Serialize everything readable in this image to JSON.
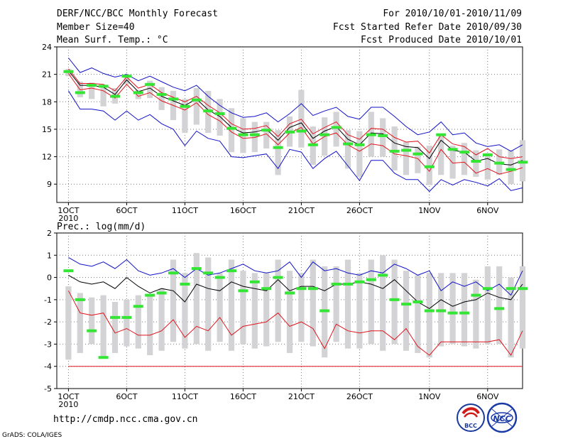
{
  "header": {
    "title": "DERF/NCC/BCC Monthly Forecast",
    "member_size": "Member Size=40",
    "variable": "Mean Surf. Temp.: °C",
    "period": "For 2010/10/01-2010/11/09",
    "started": "Fcst Started Refer Date 2010/09/30",
    "produced": "Fcst Produced Date 2010/10/01"
  },
  "footer": {
    "url": "http://cmdp.ncc.cma.gov.cn",
    "grads": "GrADS: COLA/IGES",
    "logo_left_text": "BCC",
    "logo_right_text": "NCC"
  },
  "colors": {
    "box": "#d3d3d5",
    "clim": "#33e633",
    "mean": "#000000",
    "spread": "#e0141e",
    "extreme": "#1010c8",
    "grid": "#7a7a7a"
  },
  "chart_data": [
    {
      "type": "line",
      "id": "temp",
      "ylabel": "Mean Surf. Temp.: °C",
      "ylim": [
        7,
        24
      ],
      "yticks": [
        9,
        12,
        15,
        18,
        21,
        24
      ],
      "xlim": [
        0,
        40
      ],
      "x_tick_days": [
        1,
        6,
        11,
        16,
        21,
        26,
        32,
        37
      ],
      "x_tick_labels": [
        "1OCT",
        "6OCT",
        "11OCT",
        "16OCT",
        "21OCT",
        "26OCT",
        "1NOV",
        "6NOV"
      ],
      "x_year_label": "2010",
      "days": [
        1,
        2,
        3,
        4,
        5,
        6,
        7,
        8,
        9,
        10,
        11,
        12,
        13,
        14,
        15,
        16,
        17,
        18,
        19,
        20,
        21,
        22,
        23,
        24,
        25,
        26,
        27,
        28,
        29,
        30,
        31,
        32,
        33,
        34,
        35,
        36,
        37,
        38,
        39,
        40
      ],
      "series": [
        {
          "name": "max",
          "color_key": "extreme",
          "values": [
            22.8,
            21.2,
            21.7,
            21.1,
            20.7,
            21.0,
            20.3,
            20.8,
            20.2,
            19.6,
            19.2,
            19.8,
            18.6,
            17.6,
            16.8,
            16.3,
            16.4,
            16.8,
            15.8,
            16.7,
            17.8,
            16.5,
            17.0,
            17.4,
            16.4,
            16.1,
            17.4,
            17.4,
            16.4,
            15.3,
            14.4,
            14.7,
            15.8,
            14.4,
            14.6,
            13.5,
            13.1,
            13.3,
            12.6,
            13.3
          ]
        },
        {
          "name": "mean_plus",
          "color_key": "spread",
          "values": [
            21.6,
            20.0,
            20.0,
            19.9,
            19.2,
            20.7,
            19.5,
            19.9,
            19.0,
            18.5,
            18.0,
            18.6,
            17.6,
            16.8,
            15.6,
            15.0,
            15.1,
            15.4,
            14.2,
            15.6,
            16.1,
            14.5,
            15.2,
            15.8,
            14.4,
            13.9,
            15.1,
            15.0,
            14.1,
            13.6,
            13.7,
            12.4,
            14.4,
            13.4,
            13.1,
            12.2,
            12.9,
            12.0,
            11.8,
            12.0
          ]
        },
        {
          "name": "mean",
          "color_key": "mean",
          "values": [
            21.4,
            19.8,
            19.8,
            19.6,
            18.8,
            20.4,
            19.1,
            19.5,
            18.6,
            18.1,
            17.6,
            18.3,
            17.1,
            16.4,
            15.2,
            14.6,
            14.7,
            15.0,
            13.8,
            15.2,
            15.7,
            14.0,
            14.8,
            15.3,
            13.9,
            13.3,
            14.6,
            14.5,
            13.5,
            13.1,
            13.0,
            11.8,
            13.8,
            12.7,
            12.5,
            11.5,
            11.8,
            11.2,
            11.1,
            11.6
          ]
        },
        {
          "name": "mean_minus",
          "color_key": "spread",
          "values": [
            21.1,
            19.3,
            19.5,
            19.2,
            18.4,
            19.9,
            18.6,
            19.0,
            18.1,
            17.6,
            17.1,
            17.9,
            16.6,
            15.9,
            14.7,
            14.0,
            14.1,
            14.5,
            13.3,
            14.6,
            15.2,
            13.4,
            14.2,
            14.6,
            13.3,
            12.6,
            13.4,
            13.2,
            12.3,
            12.1,
            11.8,
            10.4,
            12.8,
            11.3,
            11.4,
            10.2,
            10.7,
            10.1,
            10.4,
            10.8
          ]
        },
        {
          "name": "min",
          "color_key": "extreme",
          "values": [
            19.2,
            17.2,
            17.2,
            17.0,
            16.0,
            17.0,
            16.0,
            16.6,
            15.6,
            15.0,
            13.2,
            14.8,
            14.0,
            13.7,
            12.0,
            11.9,
            12.1,
            12.3,
            10.7,
            12.8,
            12.5,
            10.7,
            11.8,
            12.6,
            11.0,
            9.4,
            11.6,
            11.6,
            10.2,
            9.5,
            9.5,
            8.2,
            9.5,
            8.9,
            9.5,
            9.2,
            8.8,
            9.6,
            8.3,
            8.6
          ]
        }
      ],
      "boxes_low": [
        20.8,
        18.5,
        18.3,
        17.5,
        17.8,
        19.9,
        18.3,
        18.4,
        17.1,
        16.0,
        14.6,
        15.5,
        14.6,
        14.3,
        12.5,
        12.4,
        12.5,
        12.9,
        10.0,
        13.1,
        13.0,
        11.1,
        12.1,
        13.1,
        10.7,
        9.8,
        12.0,
        12.0,
        10.5,
        10.0,
        10.2,
        8.9,
        10.0,
        9.6,
        10.0,
        9.8,
        9.5,
        10.0,
        9.0,
        9.3
      ],
      "boxes_high": [
        21.6,
        20.2,
        20.1,
        19.8,
        19.5,
        21.0,
        19.3,
        20.3,
        19.6,
        19.2,
        18.3,
        19.5,
        19.2,
        18.3,
        17.3,
        16.2,
        15.8,
        15.8,
        14.9,
        16.4,
        19.3,
        15.3,
        16.3,
        16.9,
        14.9,
        14.8,
        16.9,
        16.2,
        15.3,
        13.6,
        13.1,
        13.2,
        14.3,
        13.2,
        13.5,
        12.7,
        12.4,
        12.8,
        12.7,
        13.8
      ],
      "climatology": [
        21.3,
        19.0,
        19.8,
        19.7,
        18.6,
        20.8,
        19.0,
        19.9,
        18.8,
        18.3,
        17.5,
        18.2,
        17.0,
        16.7,
        15.1,
        14.4,
        14.4,
        14.9,
        13.0,
        14.7,
        14.8,
        13.3,
        14.4,
        15.2,
        13.4,
        13.3,
        14.4,
        14.3,
        12.6,
        12.7,
        12.3,
        10.9,
        14.4,
        12.8,
        12.5,
        11.5,
        12.2,
        11.3,
        10.6,
        11.4
      ]
    },
    {
      "type": "line",
      "id": "prec",
      "ylabel": "Prec.: log(mm/d)",
      "ylim": [
        -5,
        2
      ],
      "yticks": [
        -5,
        -4,
        -3,
        -2,
        -1,
        0,
        1,
        2
      ],
      "xlim": [
        0,
        40
      ],
      "x_tick_days": [
        1,
        6,
        11,
        16,
        21,
        26,
        32,
        37
      ],
      "x_tick_labels": [
        "1OCT",
        "6OCT",
        "11OCT",
        "16OCT",
        "21OCT",
        "26OCT",
        "1NOV",
        "6NOV"
      ],
      "x_year_label": "2010",
      "days": [
        1,
        2,
        3,
        4,
        5,
        6,
        7,
        8,
        9,
        10,
        11,
        12,
        13,
        14,
        15,
        16,
        17,
        18,
        19,
        20,
        21,
        22,
        23,
        24,
        25,
        26,
        27,
        28,
        29,
        30,
        31,
        32,
        33,
        34,
        35,
        36,
        37,
        38,
        39,
        40
      ],
      "series": [
        {
          "name": "max",
          "color_key": "extreme",
          "values": [
            0.9,
            0.6,
            0.5,
            0.7,
            0.4,
            0.8,
            0.3,
            0.1,
            0.2,
            0.4,
            0.0,
            0.4,
            0.1,
            0.2,
            0.4,
            0.6,
            0.3,
            0.2,
            0.3,
            0.7,
            0.0,
            0.7,
            0.3,
            0.4,
            0.2,
            0.1,
            0.3,
            0.2,
            0.6,
            0.4,
            0.1,
            0.3,
            -0.6,
            -0.2,
            -0.4,
            -0.2,
            -0.6,
            -0.3,
            -0.8,
            0.3
          ]
        },
        {
          "name": "mean",
          "color_key": "mean",
          "values": [
            0.1,
            -0.2,
            -0.3,
            -0.2,
            -0.5,
            0.0,
            -0.4,
            -0.7,
            -0.5,
            -0.6,
            -1.1,
            -0.3,
            -0.5,
            -0.6,
            -0.2,
            -0.4,
            -0.5,
            -0.6,
            -0.1,
            -0.6,
            -0.4,
            -0.4,
            -0.6,
            -0.3,
            -0.3,
            -0.2,
            -0.3,
            -0.5,
            -0.1,
            -0.6,
            -1.1,
            -1.4,
            -1.0,
            -1.3,
            -1.1,
            -1.0,
            -0.7,
            -0.9,
            -1.0,
            -0.3
          ]
        },
        {
          "name": "p10",
          "color_key": "spread",
          "values": [
            -0.6,
            -1.6,
            -1.7,
            -1.6,
            -2.5,
            -2.3,
            -2.6,
            -2.6,
            -2.4,
            -1.9,
            -2.7,
            -2.2,
            -2.4,
            -1.8,
            -2.6,
            -2.2,
            -2.1,
            -2.0,
            -1.6,
            -2.2,
            -2.0,
            -2.3,
            -3.2,
            -2.1,
            -2.4,
            -2.5,
            -2.4,
            -2.4,
            -2.8,
            -2.3,
            -3.1,
            -3.5,
            -2.9,
            -2.9,
            -2.9,
            -2.9,
            -2.9,
            -2.8,
            -3.5,
            -2.4
          ]
        },
        {
          "name": "floor",
          "color_key": "spread",
          "values": [
            -4,
            -4,
            -4,
            -4,
            -4,
            -4,
            -4,
            -4,
            -4,
            -4,
            -4,
            -4,
            -4,
            -4,
            -4,
            -4,
            -4,
            -4,
            -4,
            -4,
            -4,
            -4,
            -4,
            -4,
            -4,
            -4,
            -4,
            -4,
            -4,
            -4,
            -4,
            -4,
            -4,
            -4,
            -4,
            -4,
            -4,
            -4,
            -4,
            -4
          ]
        }
      ],
      "boxes_low": [
        -3.7,
        -3.4,
        -3.0,
        -3.6,
        -3.4,
        -3.1,
        -3.2,
        -3.5,
        -3.3,
        -2.9,
        -3.2,
        -3.0,
        -3.3,
        -2.9,
        -3.3,
        -3.0,
        -3.2,
        -3.1,
        -2.9,
        -3.4,
        -2.9,
        -3.1,
        -3.6,
        -2.9,
        -3.2,
        -3.2,
        -3.0,
        -3.3,
        -3.0,
        -3.3,
        -3.4,
        -3.6,
        -3.1,
        -3.0,
        -3.1,
        -3.2,
        -3.0,
        -3.0,
        -3.6,
        -3.2
      ],
      "boxes_high": [
        -0.4,
        -0.7,
        -0.9,
        -0.8,
        -1.1,
        -1.0,
        -0.8,
        -0.8,
        -0.5,
        0.8,
        0.2,
        1.1,
        0.9,
        0.2,
        0.8,
        0.3,
        0.2,
        0.2,
        0.8,
        0.3,
        0.2,
        0.8,
        0.5,
        0.5,
        0.8,
        0.2,
        0.8,
        1.0,
        0.8,
        0.3,
        0.1,
        0.2,
        0.2,
        0.2,
        0.2,
        -0.1,
        0.5,
        0.5,
        0.0,
        0.5
      ],
      "climatology": [
        0.3,
        -1.0,
        -2.4,
        -3.6,
        -1.8,
        -1.8,
        -1.3,
        -0.8,
        -0.7,
        0.2,
        -0.3,
        0.4,
        0.2,
        0.0,
        0.3,
        -0.6,
        -0.2,
        -0.5,
        0.0,
        -0.7,
        -0.5,
        -0.5,
        -1.5,
        -0.3,
        -0.3,
        -0.2,
        -0.1,
        0.1,
        -1.0,
        -1.2,
        -1.1,
        -1.5,
        -1.5,
        -1.6,
        -1.6,
        -0.8,
        -0.5,
        -1.4,
        -0.5,
        -0.5
      ]
    }
  ]
}
